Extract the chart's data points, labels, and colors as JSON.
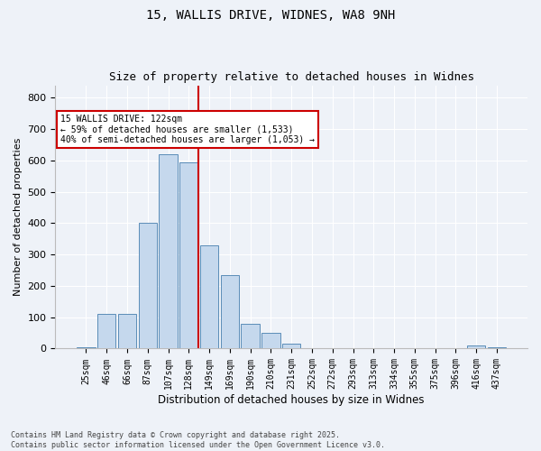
{
  "title_line1": "15, WALLIS DRIVE, WIDNES, WA8 9NH",
  "title_line2": "Size of property relative to detached houses in Widnes",
  "xlabel": "Distribution of detached houses by size in Widnes",
  "ylabel": "Number of detached properties",
  "categories": [
    "25sqm",
    "46sqm",
    "66sqm",
    "87sqm",
    "107sqm",
    "128sqm",
    "149sqm",
    "169sqm",
    "190sqm",
    "210sqm",
    "231sqm",
    "252sqm",
    "272sqm",
    "293sqm",
    "313sqm",
    "334sqm",
    "355sqm",
    "375sqm",
    "396sqm",
    "416sqm",
    "437sqm"
  ],
  "values": [
    5,
    110,
    110,
    400,
    620,
    595,
    330,
    235,
    80,
    50,
    15,
    0,
    0,
    0,
    0,
    0,
    0,
    0,
    0,
    10,
    5
  ],
  "bar_color": "#c5d8ed",
  "bar_edge_color": "#5b8db8",
  "highlight_index": 5,
  "highlight_color": "#cc0000",
  "ylim": [
    0,
    840
  ],
  "yticks": [
    0,
    100,
    200,
    300,
    400,
    500,
    600,
    700,
    800
  ],
  "annotation_title": "15 WALLIS DRIVE: 122sqm",
  "annotation_line1": "← 59% of detached houses are smaller (1,533)",
  "annotation_line2": "40% of semi-detached houses are larger (1,053) →",
  "annotation_box_facecolor": "#ffffff",
  "annotation_box_edgecolor": "#cc0000",
  "footer_line1": "Contains HM Land Registry data © Crown copyright and database right 2025.",
  "footer_line2": "Contains public sector information licensed under the Open Government Licence v3.0.",
  "background_color": "#eef2f8",
  "grid_color": "#ffffff",
  "title_fontsize": 10,
  "subtitle_fontsize": 9,
  "ylabel_fontsize": 8,
  "xlabel_fontsize": 8.5,
  "tick_fontsize": 7,
  "annotation_fontsize": 7,
  "footer_fontsize": 6
}
